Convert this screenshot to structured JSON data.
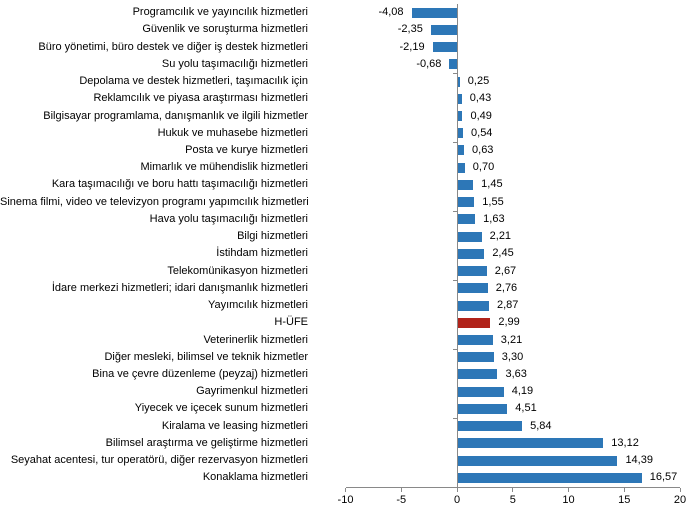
{
  "chart_data": {
    "type": "bar",
    "orientation": "horizontal",
    "title": "",
    "xlabel": "",
    "ylabel": "",
    "xlim": [
      -10,
      20
    ],
    "grid": false,
    "legend": null,
    "bar_color": "#2d77b7",
    "highlight_color": "#b1231a",
    "axis_color": "#898989",
    "text_color": "#000000",
    "x_ticks": [
      -10,
      -5,
      0,
      5,
      10,
      15,
      20
    ],
    "x_tick_labels": [
      "-10",
      "-5",
      "0",
      "5",
      "10",
      "15",
      "20"
    ],
    "highlight_category": "H-ÜFE",
    "highlight_index": 18,
    "categories": [
      "Programcılık ve yayıncılık hizmetleri",
      "Güvenlik ve soruşturma hizmetleri",
      "Büro yönetimi, büro destek ve diğer iş destek hizmetleri",
      "Su yolu taşımacılığı hizmetleri",
      "Depolama ve destek hizmetleri, taşımacılık için",
      "Reklamcılık ve piyasa araştırması hizmetleri",
      "Bilgisayar programlama, danışmanlık ve ilgili hizmetler",
      "Hukuk ve muhasebe hizmetleri",
      "Posta ve kurye hizmetleri",
      "Mimarlık ve mühendislik hizmetleri",
      "Kara taşımacılığı ve boru hattı taşımacılığı hizmetleri",
      "Sinema filmi, video ve televizyon programı yapımcılık hizmetleri",
      "Hava yolu taşımacılığı hizmetleri",
      "Bilgi hizmetleri",
      "İstihdam hizmetleri",
      "Telekomünikasyon hizmetleri",
      "İdare merkezi hizmetleri; idari danışmanlık hizmetleri",
      "Yayımcılık hizmetleri",
      "H-ÜFE",
      "Veterinerlik hizmetleri",
      "Diğer mesleki, bilimsel ve teknik hizmetler",
      "Bina ve çevre düzenleme (peyzaj) hizmetleri",
      "Gayrimenkul hizmetleri",
      "Yiyecek ve içecek sunum hizmetleri",
      "Kiralama ve leasing hizmetleri",
      "Bilimsel araştırma ve geliştirme hizmetleri",
      "Seyahat acentesi, tur operatörü, diğer rezervasyon hizmetleri",
      "Konaklama hizmetleri"
    ],
    "values": [
      -4.08,
      -2.35,
      -2.19,
      -0.68,
      0.25,
      0.43,
      0.49,
      0.54,
      0.63,
      0.7,
      1.45,
      1.55,
      1.63,
      2.21,
      2.45,
      2.67,
      2.76,
      2.87,
      2.99,
      3.21,
      3.3,
      3.63,
      4.19,
      4.51,
      5.84,
      13.12,
      14.39,
      16.57
    ],
    "value_labels": [
      "-4,08",
      "-2,35",
      "-2,19",
      "-0,68",
      "0,25",
      "0,43",
      "0,49",
      "0,54",
      "0,63",
      "0,70",
      "1,45",
      "1,55",
      "1,63",
      "2,21",
      "2,45",
      "2,67",
      "2,76",
      "2,87",
      "2,99",
      "3,21",
      "3,30",
      "3,63",
      "4,19",
      "4,51",
      "5,84",
      "13,12",
      "14,39",
      "16,57"
    ]
  }
}
